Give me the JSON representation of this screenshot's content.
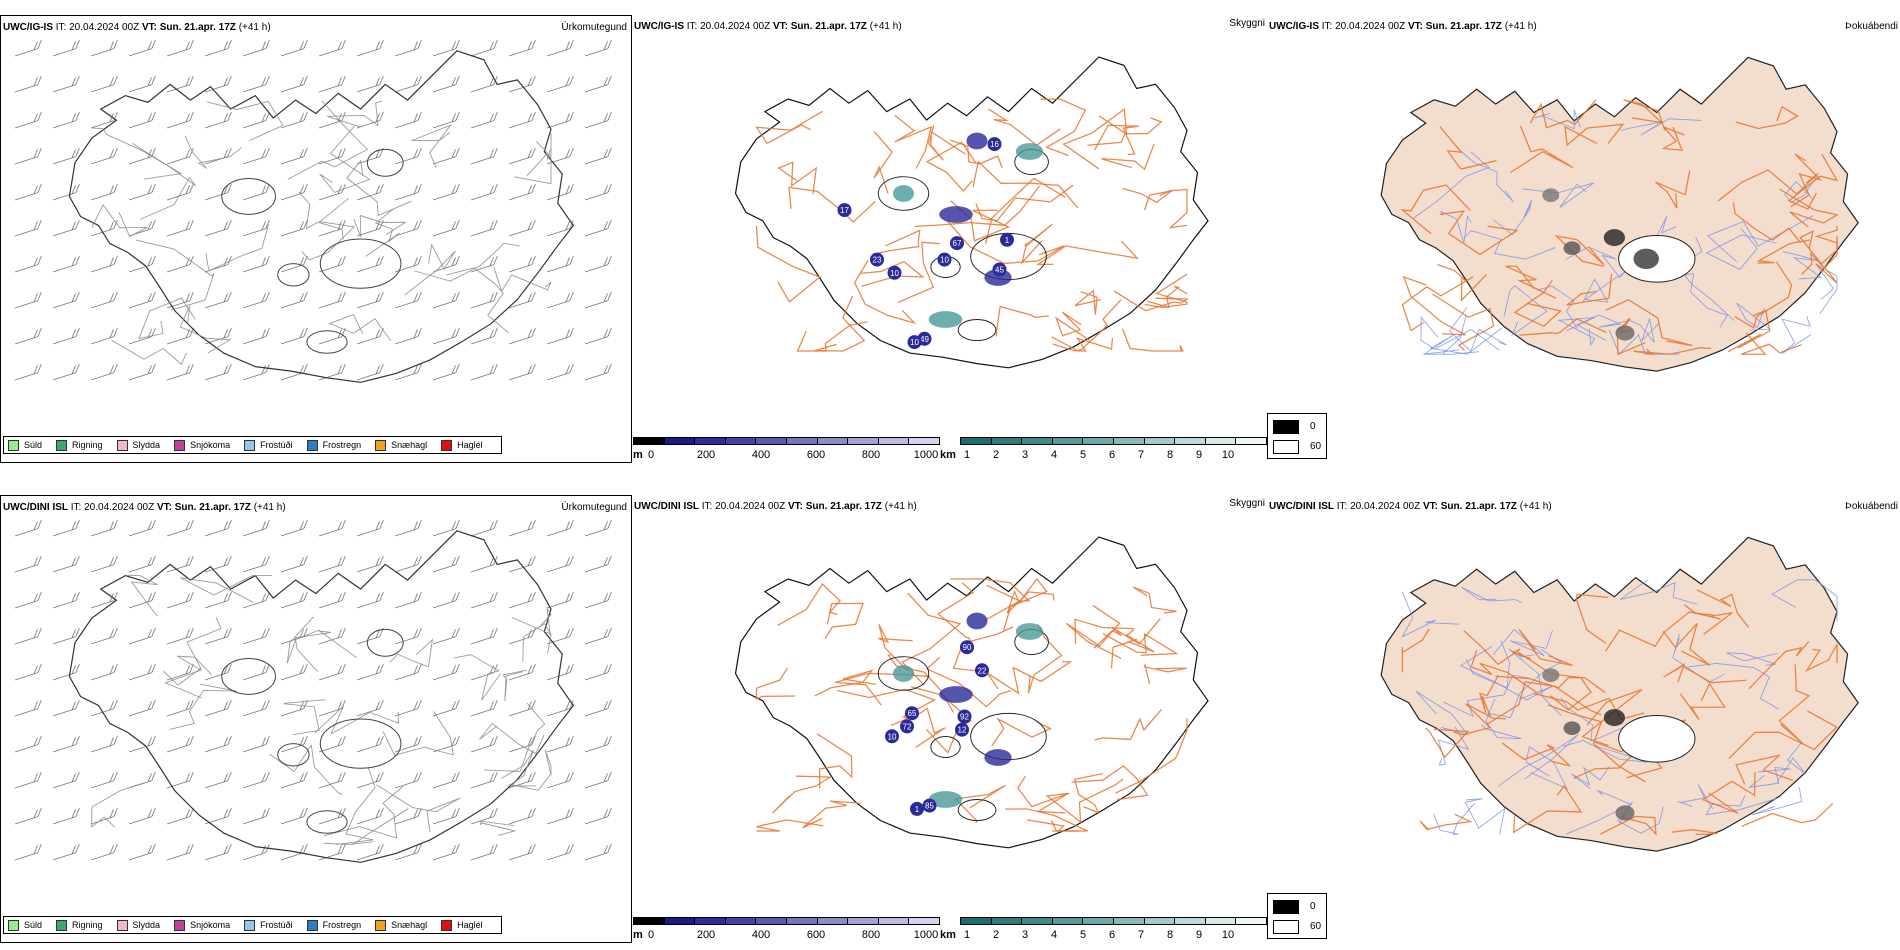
{
  "top": {
    "model": "UWC/IG-IS",
    "it_label": "IT:",
    "it_value": "20.04.2024 00Z",
    "vt_label": "VT:",
    "vt_value": "Sun. 21.apr. 17Z",
    "lead": "(+41 h)",
    "precip_title": "Úrkomutegund",
    "vis_title": "Skyggni",
    "fog_title": "Þokuábendi",
    "vis_labels": [
      "16",
      "67",
      "10",
      "23",
      "1",
      "45",
      "10",
      "17",
      "49",
      "10"
    ]
  },
  "bottom": {
    "model": "UWC/DINI ISL",
    "it_label": "IT:",
    "it_value": "20.04.2024 00Z",
    "vt_label": "VT:",
    "vt_value": "Sun. 21.apr. 17Z",
    "lead": "(+41 h)",
    "precip_title": "Úrkomutegund",
    "vis_title": "Skyggni",
    "fog_title": "Þokuábendi",
    "vis_labels": [
      "90",
      "22",
      "65",
      "72",
      "10",
      "92",
      "12",
      "85",
      "1"
    ]
  },
  "precip_legend": [
    {
      "label": "Súld",
      "color": "#90ee90"
    },
    {
      "label": "Rigning",
      "color": "#3aa96b"
    },
    {
      "label": "Slydda",
      "color": "#f4b6d2"
    },
    {
      "label": "Snjókoma",
      "color": "#c0409a"
    },
    {
      "label": "Frostúði",
      "color": "#8ec8f0"
    },
    {
      "label": "Frostregn",
      "color": "#2f7fc0"
    },
    {
      "label": "Snæhagl",
      "color": "#f2a020"
    },
    {
      "label": "Haglél",
      "color": "#e01010"
    }
  ],
  "ceiling_bar": {
    "unit": "m",
    "ticks": [
      "0",
      "200",
      "400",
      "600",
      "800",
      "1000"
    ],
    "colors": [
      "#000000",
      "#1c1c84",
      "#2e2e9a",
      "#4444a8",
      "#5a5ab4",
      "#7474c0",
      "#8c8cca",
      "#a4a4d6",
      "#bcbce2",
      "#d4d4ee"
    ]
  },
  "vis_bar": {
    "unit": "km",
    "ticks": [
      "1",
      "2",
      "3",
      "4",
      "5",
      "6",
      "7",
      "8",
      "9",
      "10"
    ],
    "colors": [
      "#1a6e6e",
      "#2c7c7c",
      "#3e8a8a",
      "#569a9a",
      "#6eaaaa",
      "#88baba",
      "#a2caca",
      "#bcdada",
      "#d6eaea",
      "#eef6f6"
    ]
  },
  "fog_legend": [
    "0",
    "60"
  ],
  "colors": {
    "land_fill": "#f3ddcc",
    "road": "#e8722a",
    "river": "#7a90e8",
    "coast": "#000000",
    "vis_blue": "#2a2a9a",
    "vis_teal": "#4a9a9a"
  }
}
